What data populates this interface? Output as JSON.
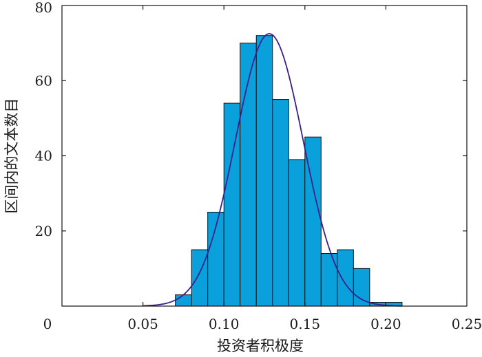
{
  "chart_data": {
    "type": "bar",
    "subtype": "histogram-with-normal-fit",
    "xlabel": "投资者积极度",
    "ylabel": "区间内的文本数目",
    "xlim": [
      0,
      0.25
    ],
    "ylim": [
      0,
      80
    ],
    "x_ticks": [
      "0",
      "0.05",
      "0.10",
      "0.15",
      "0.20",
      "0.25"
    ],
    "y_ticks": [
      "20",
      "40",
      "60",
      "80"
    ],
    "bin_width": 0.01,
    "bins": [
      {
        "start": 0.07,
        "value": 3
      },
      {
        "start": 0.08,
        "value": 15
      },
      {
        "start": 0.09,
        "value": 25
      },
      {
        "start": 0.1,
        "value": 54
      },
      {
        "start": 0.11,
        "value": 70
      },
      {
        "start": 0.12,
        "value": 72
      },
      {
        "start": 0.13,
        "value": 55
      },
      {
        "start": 0.14,
        "value": 39
      },
      {
        "start": 0.15,
        "value": 45
      },
      {
        "start": 0.16,
        "value": 14
      },
      {
        "start": 0.17,
        "value": 15
      },
      {
        "start": 0.18,
        "value": 10
      },
      {
        "start": 0.19,
        "value": 1
      },
      {
        "start": 0.2,
        "value": 1
      }
    ],
    "fit_curve": {
      "type": "normal",
      "peak_x": 0.128,
      "peak_y": 72.5,
      "sigma": 0.021,
      "x_range": [
        0.05,
        0.21
      ]
    },
    "colors": {
      "bar": "#0aa0dc",
      "curve": "#3a1f8a"
    }
  }
}
